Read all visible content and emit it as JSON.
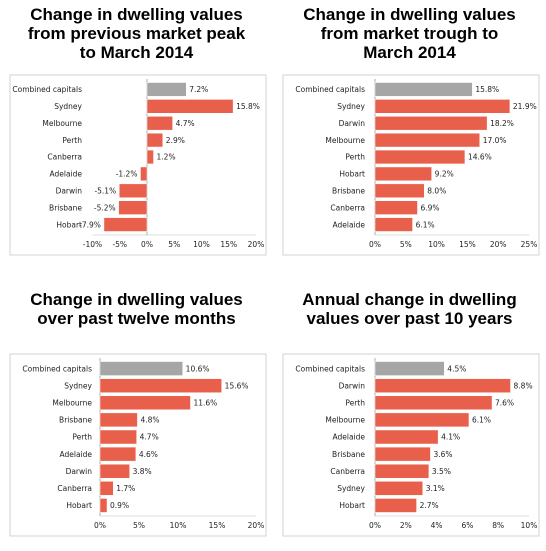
{
  "chart_data": [
    {
      "type": "bar",
      "orientation": "horizontal",
      "title_lines": [
        "Change in dwelling values",
        "from previous market peak",
        "to March 2014"
      ],
      "categories": [
        "Combined capitals",
        "Sydney",
        "Melbourne",
        "Perth",
        "Canberra",
        "Adelaide",
        "Darwin",
        "Brisbane",
        "Hobart"
      ],
      "values": [
        7.2,
        15.8,
        4.7,
        2.9,
        1.2,
        -1.2,
        -5.1,
        -5.2,
        -7.9
      ],
      "value_labels": [
        "7.2%",
        "15.8%",
        "4.7%",
        "2.9%",
        "1.2%",
        "-1.2%",
        "-5.1%",
        "-5.2%",
        "-7.9%"
      ],
      "xlim": [
        -10,
        20
      ],
      "xticks": [
        -10,
        -5,
        0,
        5,
        10,
        15,
        20
      ],
      "xtick_labels": [
        "-10%",
        "-5%",
        "0%",
        "5%",
        "10%",
        "15%",
        "20%"
      ],
      "colors": [
        "#a6a6a6",
        "#e8604c",
        "#e8604c",
        "#e8604c",
        "#e8604c",
        "#e8604c",
        "#e8604c",
        "#e8604c",
        "#e8604c"
      ]
    },
    {
      "type": "bar",
      "orientation": "horizontal",
      "title_lines": [
        "Change in dwelling values",
        "from market trough to",
        "March 2014"
      ],
      "categories": [
        "Combined capitals",
        "Sydney",
        "Darwin",
        "Melbourne",
        "Perth",
        "Hobart",
        "Brisbane",
        "Canberra",
        "Adelaide"
      ],
      "values": [
        15.8,
        21.9,
        18.2,
        17.0,
        14.6,
        9.2,
        8.0,
        6.9,
        6.1
      ],
      "value_labels": [
        "15.8%",
        "21.9%",
        "18.2%",
        "17.0%",
        "14.6%",
        "9.2%",
        "8.0%",
        "6.9%",
        "6.1%"
      ],
      "xlim": [
        0,
        25
      ],
      "xticks": [
        0,
        5,
        10,
        15,
        20,
        25
      ],
      "xtick_labels": [
        "0%",
        "5%",
        "10%",
        "15%",
        "20%",
        "25%"
      ],
      "colors": [
        "#a6a6a6",
        "#e8604c",
        "#e8604c",
        "#e8604c",
        "#e8604c",
        "#e8604c",
        "#e8604c",
        "#e8604c",
        "#e8604c"
      ]
    },
    {
      "type": "bar",
      "orientation": "horizontal",
      "title_lines": [
        "Change in dwelling values",
        "over past twelve months"
      ],
      "categories": [
        "Combined capitals",
        "Sydney",
        "Melbourne",
        "Brisbane",
        "Perth",
        "Adelaide",
        "Darwin",
        "Canberra",
        "Hobart"
      ],
      "values": [
        10.6,
        15.6,
        11.6,
        4.8,
        4.7,
        4.6,
        3.8,
        1.7,
        0.9
      ],
      "value_labels": [
        "10.6%",
        "15.6%",
        "11.6%",
        "4.8%",
        "4.7%",
        "4.6%",
        "3.8%",
        "1.7%",
        "0.9%"
      ],
      "xlim": [
        0,
        20
      ],
      "xticks": [
        0,
        5,
        10,
        15,
        20
      ],
      "xtick_labels": [
        "0%",
        "5%",
        "10%",
        "15%",
        "20%"
      ],
      "colors": [
        "#a6a6a6",
        "#e8604c",
        "#e8604c",
        "#e8604c",
        "#e8604c",
        "#e8604c",
        "#e8604c",
        "#e8604c",
        "#e8604c"
      ]
    },
    {
      "type": "bar",
      "orientation": "horizontal",
      "title_lines": [
        "Annual change in dwelling",
        "values over past 10 years"
      ],
      "categories": [
        "Combined capitals",
        "Darwin",
        "Perth",
        "Melbourne",
        "Adelaide",
        "Brisbane",
        "Canberra",
        "Sydney",
        "Hobart"
      ],
      "values": [
        4.5,
        8.8,
        7.6,
        6.1,
        4.1,
        3.6,
        3.5,
        3.1,
        2.7
      ],
      "value_labels": [
        "4.5%",
        "8.8%",
        "7.6%",
        "6.1%",
        "4.1%",
        "3.6%",
        "3.5%",
        "3.1%",
        "2.7%"
      ],
      "xlim": [
        0,
        10
      ],
      "xticks": [
        0,
        2,
        4,
        6,
        8,
        10
      ],
      "xtick_labels": [
        "0%",
        "2%",
        "4%",
        "6%",
        "8%",
        "10%"
      ],
      "colors": [
        "#a6a6a6",
        "#e8604c",
        "#e8604c",
        "#e8604c",
        "#e8604c",
        "#e8604c",
        "#e8604c",
        "#e8604c",
        "#e8604c"
      ]
    }
  ]
}
